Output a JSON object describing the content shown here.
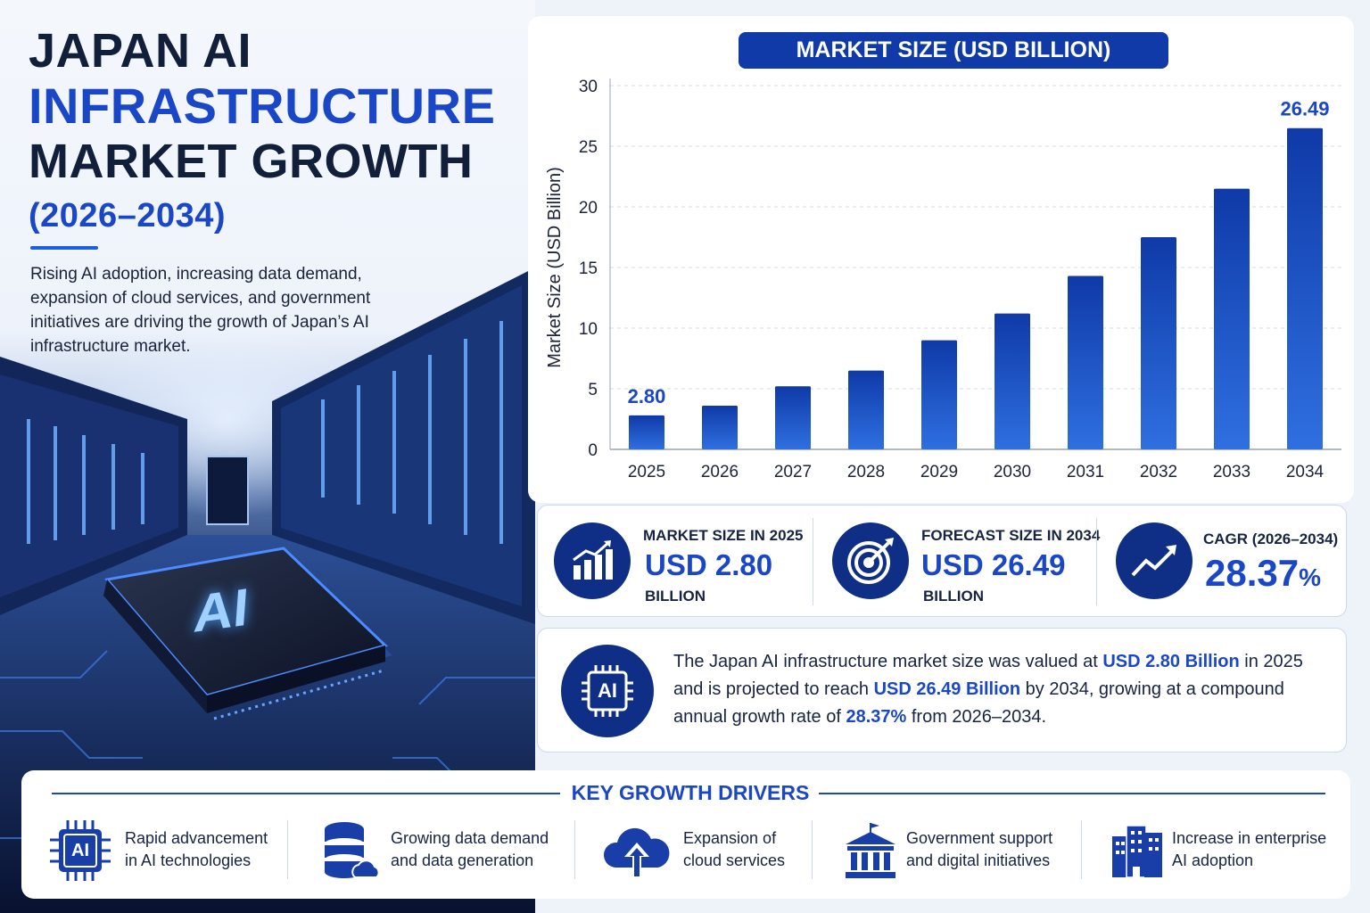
{
  "hero": {
    "title_line1": "JAPAN AI",
    "title_line2": "INFRASTRUCTURE",
    "title_line3": "MARKET GROWTH",
    "title_line4": "(2026–2034)",
    "description": "Rising AI adoption, increasing data demand, expansion of cloud services, and government initiatives are driving the growth of Japan’s AI infrastructure market.",
    "chip_label": "AI"
  },
  "chart_data": {
    "type": "bar",
    "title": "MARKET SIZE (USD BILLION)",
    "ylabel": "Market Size (USD Billion)",
    "xlabel": "",
    "categories": [
      "2025",
      "2026",
      "2027",
      "2028",
      "2029",
      "2030",
      "2031",
      "2032",
      "2033",
      "2034"
    ],
    "values": [
      2.8,
      3.6,
      5.2,
      6.5,
      9.0,
      11.2,
      14.3,
      17.5,
      21.5,
      26.49
    ],
    "data_labels": {
      "0": "2.80",
      "9": "26.49"
    },
    "ylim": [
      0,
      30
    ],
    "yticks": [
      0,
      5,
      10,
      15,
      20,
      25,
      30
    ],
    "grid": true,
    "colors": {
      "bar_top": "#2f6fe0",
      "bar_bottom": "#0f3aa8",
      "label": "#1a47c8"
    }
  },
  "stats": [
    {
      "label": "MARKET SIZE IN 2025",
      "value": "USD 2.80",
      "unit": "BILLION",
      "icon": "growth-bar-chart-icon"
    },
    {
      "label": "FORECAST SIZE IN 2034",
      "value": "USD 26.49",
      "unit": "BILLION",
      "icon": "target-icon"
    },
    {
      "label": "CAGR (2026–2034)",
      "value": "28.37",
      "value_suffix": "%",
      "icon": "trend-arrow-icon"
    }
  ],
  "summary": {
    "icon_label": "AI",
    "p1": "The Japan AI infrastructure market size was valued at ",
    "h1": "USD 2.80 Billion",
    "p2": " in 2025 and is projected to reach ",
    "h2": "USD 26.49 Billion",
    "p3": " by 2034, growing at a compound annual growth rate of ",
    "h3": "28.37%",
    "p4": " from 2026–2034."
  },
  "drivers": {
    "title": "KEY GROWTH DRIVERS",
    "items": [
      {
        "text": "Rapid advancement\nin AI technologies",
        "icon": "ai-chip-icon",
        "icon_label": "AI"
      },
      {
        "text": "Growing data demand\nand data generation",
        "icon": "database-cloud-icon"
      },
      {
        "text": "Expansion of\ncloud services",
        "icon": "cloud-upload-icon"
      },
      {
        "text": "Government support\nand digital initiatives",
        "icon": "government-building-icon"
      },
      {
        "text": "Increase in enterprise\nAI adoption",
        "icon": "enterprise-buildings-icon"
      }
    ]
  },
  "colors": {
    "navy": "#0f2f86",
    "accent": "#1a47c8",
    "dark_text": "#111f3a"
  }
}
